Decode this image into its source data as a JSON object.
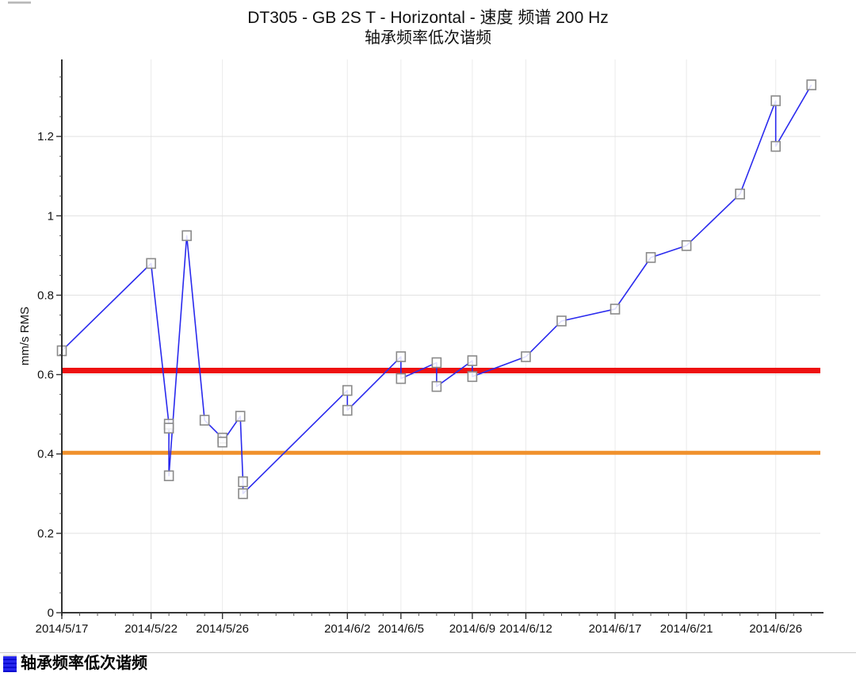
{
  "chart_data": {
    "type": "line",
    "title": "DT305 - GB 2S T - Horizontal - 速度 频谱 200 Hz",
    "subtitle": "轴承频率低次谐频",
    "ylabel": "mm/s RMS",
    "xlabel": "",
    "ylim": [
      0,
      1.394
    ],
    "x_domain_days": [
      0,
      42.5
    ],
    "grid": "on",
    "colors": {
      "series_line": "#2a2aee",
      "marker_stroke": "#8a8a8a",
      "marker_fill": "#ffffff",
      "alarm_line": "#ee1111",
      "warning_line": "#f0912c",
      "grid_horizontal": "#e0e0e0",
      "grid_vertical": "#ebebeb",
      "axis": "#1a1a1a",
      "tick_text": "#111111"
    },
    "y_ticks": [
      {
        "label": "0",
        "value": 0
      },
      {
        "label": "0.2",
        "value": 0.2
      },
      {
        "label": "0.4",
        "value": 0.4
      },
      {
        "label": "0.6",
        "value": 0.6
      },
      {
        "label": "0.8",
        "value": 0.8
      },
      {
        "label": "1",
        "value": 1
      },
      {
        "label": "1.2",
        "value": 1.2
      }
    ],
    "y_minor_step": 0.05,
    "x_ticks": [
      {
        "label": "2014/5/17",
        "day": 0
      },
      {
        "label": "2014/5/22",
        "day": 5
      },
      {
        "label": "2014/5/26",
        "day": 9
      },
      {
        "label": "2014/6/2",
        "day": 16
      },
      {
        "label": "2014/6/5",
        "day": 19
      },
      {
        "label": "2014/6/9",
        "day": 23
      },
      {
        "label": "2014/6/12",
        "day": 26
      },
      {
        "label": "2014/6/17",
        "day": 31
      },
      {
        "label": "2014/6/21",
        "day": 35
      },
      {
        "label": "2014/6/26",
        "day": 40
      }
    ],
    "reference_lines": [
      {
        "name": "alarm-line",
        "value": 0.61,
        "color": "#ee1111",
        "thickness": 7
      },
      {
        "name": "warning-line",
        "value": 0.403,
        "color": "#f0912c",
        "thickness": 5
      }
    ],
    "series": [
      {
        "name": "轴承频率低次谐频",
        "marker": "hollow-square",
        "points": [
          {
            "date": "2014/5/17",
            "day": 0,
            "value": 0.66
          },
          {
            "date": "2014/5/22",
            "day": 5,
            "value": 0.88
          },
          {
            "date": "2014/5/23",
            "day": 6,
            "value": 0.475
          },
          {
            "date": "2014/5/23",
            "day": 6,
            "value": 0.465
          },
          {
            "date": "2014/5/23",
            "day": 6,
            "value": 0.345
          },
          {
            "date": "2014/5/24",
            "day": 7,
            "value": 0.95
          },
          {
            "date": "2014/5/25",
            "day": 8,
            "value": 0.485
          },
          {
            "date": "2014/5/26",
            "day": 9,
            "value": 0.44
          },
          {
            "date": "2014/5/26",
            "day": 9,
            "value": 0.43
          },
          {
            "date": "2014/5/27",
            "day": 10,
            "value": 0.495
          },
          {
            "date": "2014/5/27",
            "day": 10.15,
            "value": 0.33
          },
          {
            "date": "2014/5/27",
            "day": 10.15,
            "value": 0.3
          },
          {
            "date": "2014/6/2",
            "day": 16,
            "value": 0.56
          },
          {
            "date": "2014/6/2",
            "day": 16,
            "value": 0.51
          },
          {
            "date": "2014/6/5",
            "day": 19,
            "value": 0.645
          },
          {
            "date": "2014/6/5",
            "day": 19,
            "value": 0.59
          },
          {
            "date": "2014/6/7",
            "day": 21,
            "value": 0.63
          },
          {
            "date": "2014/6/7",
            "day": 21,
            "value": 0.57
          },
          {
            "date": "2014/6/9",
            "day": 23,
            "value": 0.635
          },
          {
            "date": "2014/6/9",
            "day": 23,
            "value": 0.595
          },
          {
            "date": "2014/6/12",
            "day": 26,
            "value": 0.645
          },
          {
            "date": "2014/6/14",
            "day": 28,
            "value": 0.735
          },
          {
            "date": "2014/6/17",
            "day": 31,
            "value": 0.765
          },
          {
            "date": "2014/6/19",
            "day": 33,
            "value": 0.895
          },
          {
            "date": "2014/6/21",
            "day": 35,
            "value": 0.925
          },
          {
            "date": "2014/6/24",
            "day": 38,
            "value": 1.055
          },
          {
            "date": "2014/6/26",
            "day": 40,
            "value": 1.29
          },
          {
            "date": "2014/6/26",
            "day": 40,
            "value": 1.175
          },
          {
            "date": "2014/6/28",
            "day": 42,
            "value": 1.33
          }
        ]
      }
    ],
    "legend": [
      {
        "label": "轴承频率低次谐频",
        "swatch_color": "#2626ee"
      }
    ],
    "legend_position": "bottom-left"
  }
}
